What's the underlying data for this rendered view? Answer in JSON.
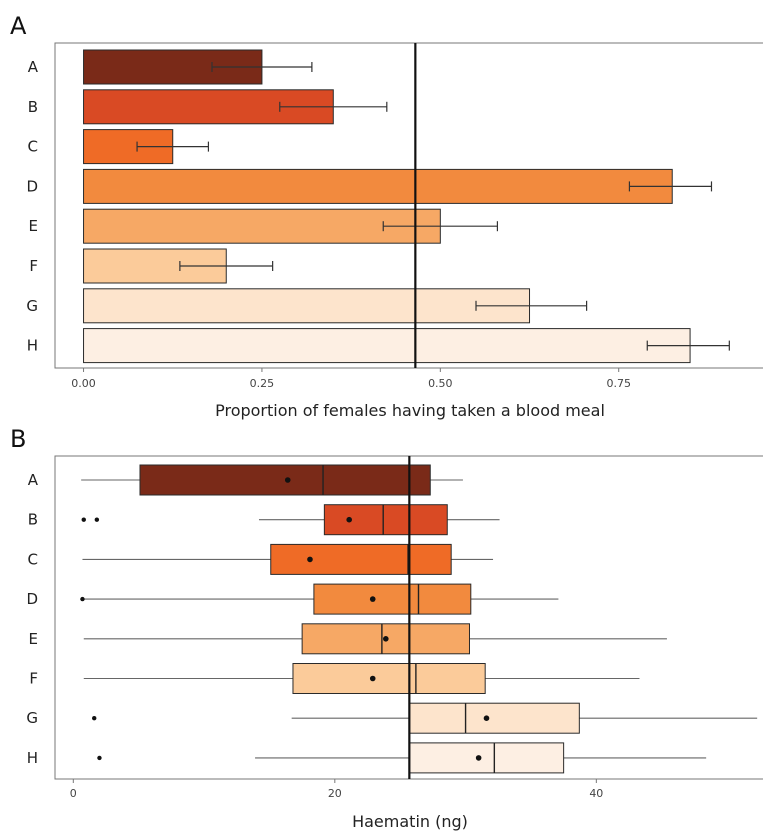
{
  "colors": {
    "A": "#7a2a18",
    "B": "#d94a24",
    "C": "#ef6b26",
    "D": "#f28a3e",
    "E": "#f6a865",
    "F": "#fbcb9a",
    "G": "#fde4cc",
    "H": "#fdefe3",
    "reference_line": "#111111",
    "frame": "#777777",
    "whisker": "#666666"
  },
  "chart_data": [
    {
      "panel": "A",
      "type": "bar",
      "orientation": "horizontal",
      "categories": [
        "A",
        "B",
        "C",
        "D",
        "E",
        "F",
        "G",
        "H"
      ],
      "values": [
        0.25,
        0.35,
        0.125,
        0.825,
        0.5,
        0.2,
        0.625,
        0.85
      ],
      "error_low": [
        0.18,
        0.275,
        0.075,
        0.765,
        0.42,
        0.135,
        0.55,
        0.79
      ],
      "error_high": [
        0.32,
        0.425,
        0.175,
        0.88,
        0.58,
        0.265,
        0.705,
        0.905
      ],
      "reference_line": 0.465,
      "xlabel": "Proportion of females having taken a blood meal",
      "xlim": [
        -0.04,
        0.955
      ],
      "xticks": [
        "0.00",
        "0.25",
        "0.50",
        "0.75"
      ],
      "xtick_values": [
        0,
        0.25,
        0.5,
        0.75
      ]
    },
    {
      "panel": "B",
      "type": "boxplot",
      "orientation": "horizontal",
      "categories": [
        "A",
        "B",
        "C",
        "D",
        "E",
        "F",
        "G",
        "H"
      ],
      "series": [
        {
          "name": "A",
          "whisker_low": 0.6,
          "q1": 5.1,
          "median": 19.1,
          "q3": 27.3,
          "whisker_high": 29.8,
          "mean": 16.4,
          "outliers": []
        },
        {
          "name": "B",
          "whisker_low": 14.2,
          "q1": 19.2,
          "median": 23.7,
          "q3": 28.6,
          "whisker_high": 32.6,
          "mean": 21.1,
          "outliers": [
            0.8,
            1.8
          ]
        },
        {
          "name": "C",
          "whisker_low": 0.7,
          "q1": 15.1,
          "median": 25.6,
          "q3": 28.9,
          "whisker_high": 32.1,
          "mean": 18.1,
          "outliers": []
        },
        {
          "name": "D",
          "whisker_low": 0.7,
          "q1": 18.4,
          "median": 26.4,
          "q3": 30.4,
          "whisker_high": 37.1,
          "mean": 22.9,
          "outliers": [
            0.7
          ]
        },
        {
          "name": "E",
          "whisker_low": 0.8,
          "q1": 17.5,
          "median": 23.6,
          "q3": 30.3,
          "whisker_high": 45.4,
          "mean": 23.9,
          "outliers": []
        },
        {
          "name": "F",
          "whisker_low": 0.8,
          "q1": 16.8,
          "median": 26.2,
          "q3": 31.5,
          "whisker_high": 43.3,
          "mean": 22.9,
          "outliers": []
        },
        {
          "name": "G",
          "whisker_low": 16.7,
          "q1": 25.7,
          "median": 30.0,
          "q3": 38.7,
          "whisker_high": 52.3,
          "mean": 31.6,
          "outliers": [
            1.6
          ]
        },
        {
          "name": "H",
          "whisker_low": 13.9,
          "q1": 25.7,
          "median": 32.2,
          "q3": 37.5,
          "whisker_high": 48.4,
          "mean": 31.0,
          "outliers": [
            2.0
          ]
        }
      ],
      "reference_line": 25.7,
      "xlabel": "Haematin (ng)",
      "xlim": [
        -1.4,
        52.9
      ],
      "xticks": [
        "0",
        "20",
        "40"
      ],
      "xtick_values": [
        0,
        20,
        40
      ]
    }
  ]
}
